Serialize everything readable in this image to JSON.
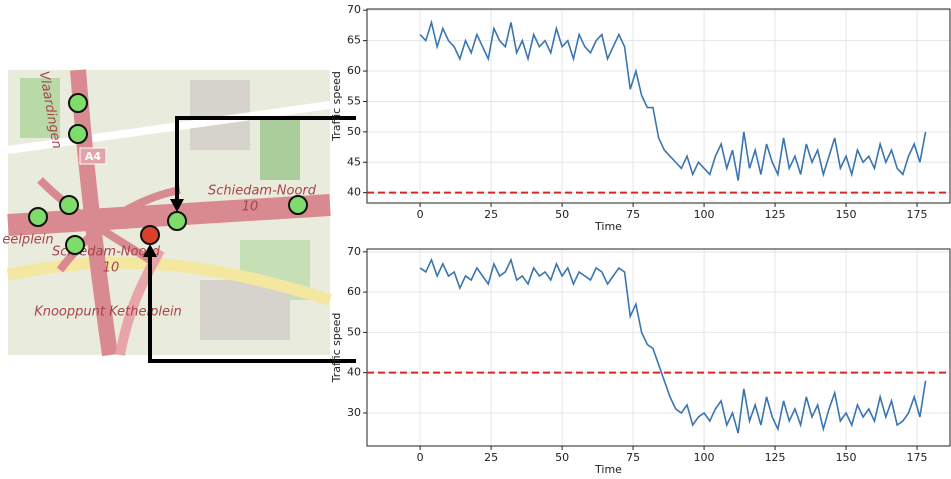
{
  "map": {
    "labels": [
      "Vlaardingen",
      "A4",
      "Schiedam-Noord",
      "10",
      "eelplein",
      "Schiedam-Noord",
      "10",
      "Knooppunt Kethelplein"
    ]
  },
  "chart_data": [
    {
      "type": "line",
      "xlabel": "Time",
      "ylabel": "Traffic speed",
      "x": [
        0,
        2,
        4,
        6,
        8,
        10,
        12,
        14,
        16,
        18,
        20,
        22,
        24,
        26,
        28,
        30,
        32,
        34,
        36,
        38,
        40,
        42,
        44,
        46,
        48,
        50,
        52,
        54,
        56,
        58,
        60,
        62,
        64,
        66,
        68,
        70,
        72,
        74,
        76,
        78,
        80,
        82,
        84,
        86,
        88,
        90,
        92,
        94,
        96,
        98,
        100,
        102,
        104,
        106,
        108,
        110,
        112,
        114,
        116,
        118,
        120,
        122,
        124,
        126,
        128,
        130,
        132,
        134,
        136,
        138,
        140,
        142,
        144,
        146,
        148,
        150,
        152,
        154,
        156,
        158,
        160,
        162,
        164,
        166,
        168,
        170,
        172,
        174,
        176,
        178
      ],
      "series": [
        {
          "color": "#3a75b0",
          "values": [
            66,
            65,
            68,
            64,
            67,
            65,
            64,
            62,
            65,
            63,
            66,
            64,
            62,
            67,
            65,
            64,
            68,
            63,
            65,
            62,
            66,
            64,
            65,
            63,
            67,
            64,
            65,
            62,
            66,
            64,
            63,
            65,
            66,
            62,
            64,
            66,
            64,
            57,
            60,
            56,
            54,
            54,
            49,
            47,
            46,
            45,
            44,
            46,
            43,
            45,
            44,
            43,
            46,
            48,
            44,
            47,
            42,
            50,
            44,
            47,
            43,
            48,
            45,
            43,
            49,
            44,
            46,
            43,
            48,
            45,
            47,
            43,
            46,
            49,
            44,
            46,
            43,
            47,
            45,
            46,
            44,
            48,
            45,
            47,
            44,
            43,
            46,
            48,
            45,
            50
          ]
        }
      ],
      "threshold": 40,
      "threshold_color": "#d62728",
      "xlim": [
        -18.7,
        186.6
      ],
      "ylim": [
        38.3,
        70.2
      ],
      "xticks": [
        0,
        25,
        50,
        75,
        100,
        125,
        150,
        175
      ],
      "yticks": [
        40,
        45,
        50,
        55,
        60,
        65,
        70
      ],
      "grid": true
    },
    {
      "type": "line",
      "xlabel": "Time",
      "ylabel": "Traffic speed",
      "x": [
        0,
        2,
        4,
        6,
        8,
        10,
        12,
        14,
        16,
        18,
        20,
        22,
        24,
        26,
        28,
        30,
        32,
        34,
        36,
        38,
        40,
        42,
        44,
        46,
        48,
        50,
        52,
        54,
        56,
        58,
        60,
        62,
        64,
        66,
        68,
        70,
        72,
        74,
        76,
        78,
        80,
        82,
        84,
        86,
        88,
        90,
        92,
        94,
        96,
        98,
        100,
        102,
        104,
        106,
        108,
        110,
        112,
        114,
        116,
        118,
        120,
        122,
        124,
        126,
        128,
        130,
        132,
        134,
        136,
        138,
        140,
        142,
        144,
        146,
        148,
        150,
        152,
        154,
        156,
        158,
        160,
        162,
        164,
        166,
        168,
        170,
        172,
        174,
        176,
        178
      ],
      "series": [
        {
          "color": "#3a75b0",
          "values": [
            66,
            65,
            68,
            64,
            67,
            64,
            65,
            61,
            64,
            63,
            66,
            64,
            62,
            67,
            64,
            65,
            68,
            63,
            64,
            62,
            66,
            64,
            65,
            63,
            67,
            64,
            66,
            62,
            65,
            64,
            63,
            66,
            65,
            62,
            64,
            66,
            65,
            54,
            57,
            50,
            47,
            46,
            42,
            38,
            34,
            31,
            30,
            32,
            27,
            29,
            30,
            28,
            31,
            33,
            27,
            30,
            25,
            36,
            28,
            32,
            27,
            34,
            29,
            26,
            33,
            28,
            31,
            27,
            34,
            29,
            32,
            26,
            31,
            35,
            28,
            30,
            27,
            32,
            29,
            31,
            28,
            34,
            29,
            33,
            27,
            28,
            30,
            34,
            29,
            38
          ]
        }
      ],
      "threshold": 40,
      "threshold_color": "#d62728",
      "xlim": [
        -18.7,
        186.6
      ],
      "ylim": [
        21.8,
        70.7
      ],
      "xticks": [
        0,
        25,
        50,
        75,
        100,
        125,
        150,
        175
      ],
      "yticks": [
        30,
        40,
        50,
        60,
        70
      ],
      "grid": true
    }
  ]
}
